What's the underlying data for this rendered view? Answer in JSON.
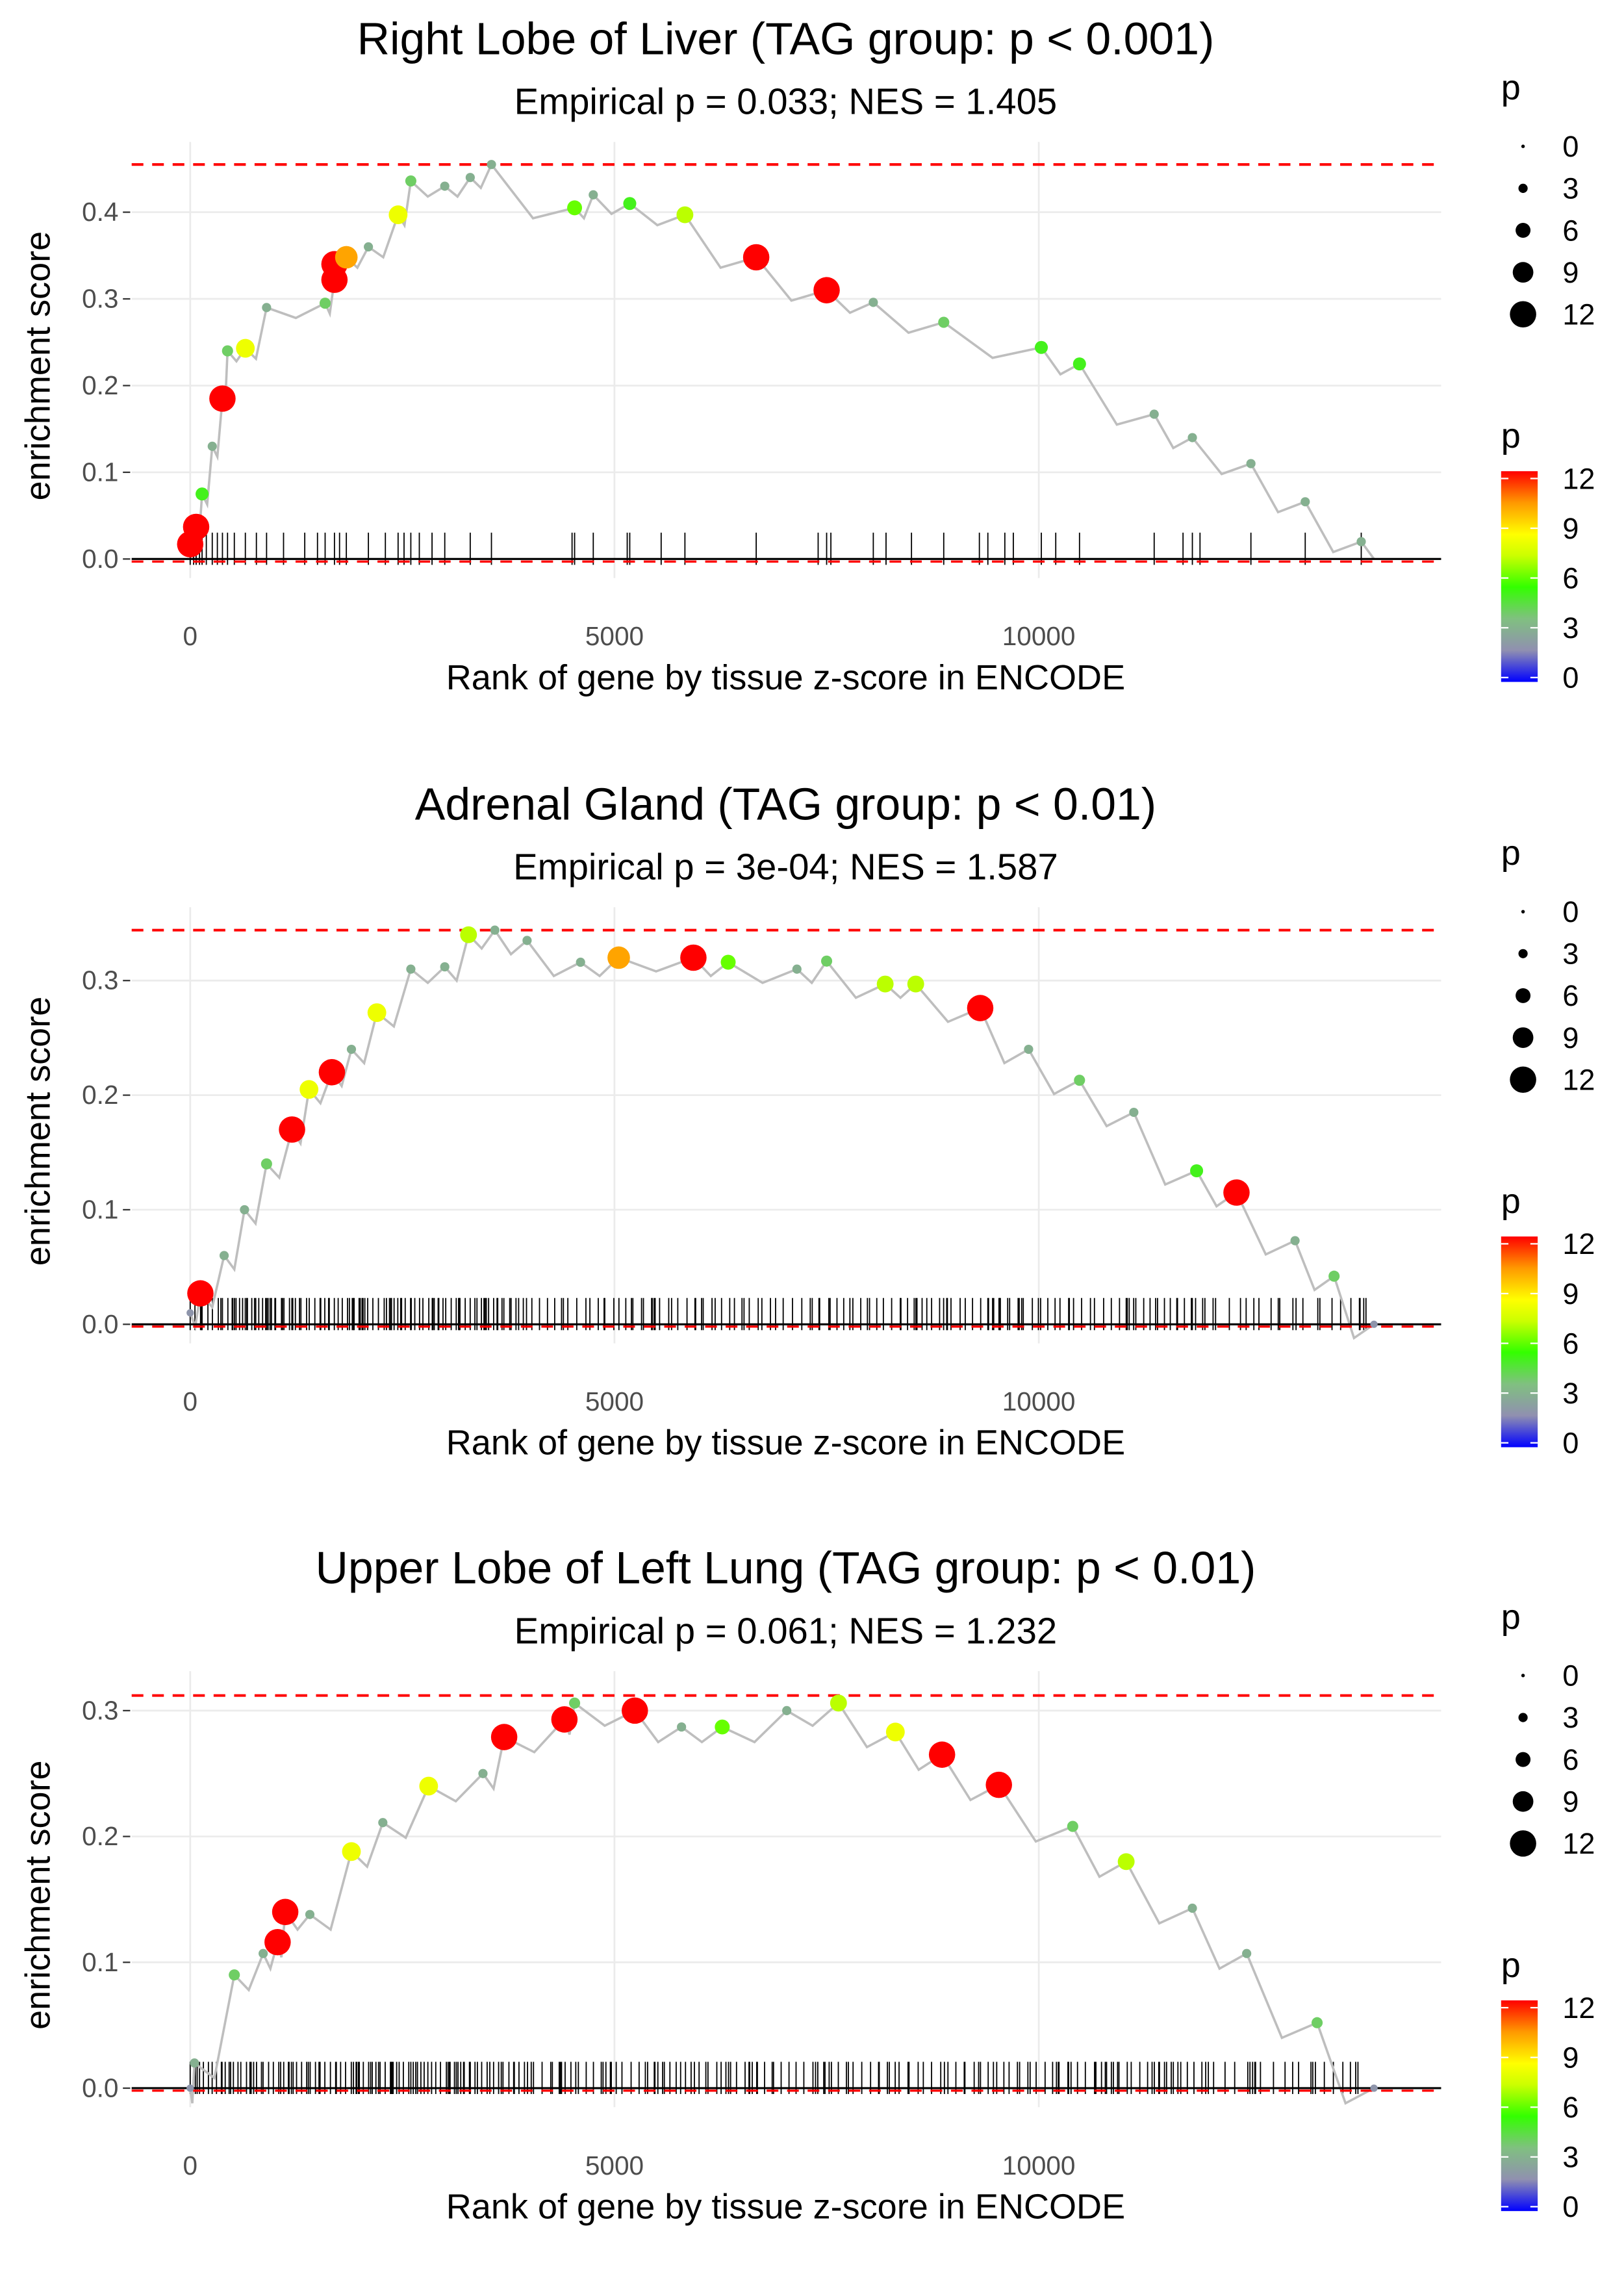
{
  "chart_data": [
    {
      "type": "line",
      "title": "Right Lobe of Liver (TAG group: p < 0.001)",
      "subtitle": "Empirical p = 0.033; NES = 1.405",
      "xlabel": "Rank of gene by tissue z-score in ENCODE",
      "ylabel": "enrichment score",
      "xlim": [
        -700,
        14800
      ],
      "ylim": [
        -0.02,
        0.48
      ],
      "xticks": [
        0,
        5000,
        10000
      ],
      "xtick_labels": [
        "0",
        "5000",
        "10000"
      ],
      "yticks": [
        0,
        0.1,
        0.2,
        0.3,
        0.4
      ],
      "ytick_labels": [
        "0.0",
        "0.1",
        "0.2",
        "0.3",
        "0.4"
      ],
      "max_es": 0.455,
      "min_es": -0.003,
      "end_rank": 13950,
      "points": [
        [
          0,
          0.017,
          12
        ],
        [
          70,
          0.037,
          12
        ],
        [
          140,
          0.075,
          5
        ],
        [
          260,
          0.13,
          3
        ],
        [
          380,
          0.185,
          12
        ],
        [
          440,
          0.24,
          4
        ],
        [
          650,
          0.243,
          8
        ],
        [
          900,
          0.29,
          3
        ],
        [
          1590,
          0.295,
          4
        ],
        [
          1700,
          0.322,
          12
        ],
        [
          1700,
          0.34,
          12
        ],
        [
          1840,
          0.348,
          10
        ],
        [
          2100,
          0.36,
          3
        ],
        [
          2450,
          0.397,
          8
        ],
        [
          2600,
          0.436,
          4
        ],
        [
          3000,
          0.43,
          3
        ],
        [
          3300,
          0.44,
          3
        ],
        [
          3550,
          0.455,
          3
        ],
        [
          4530,
          0.405,
          6
        ],
        [
          4750,
          0.42,
          3
        ],
        [
          5180,
          0.41,
          5
        ],
        [
          5830,
          0.397,
          7
        ],
        [
          6670,
          0.348,
          12
        ],
        [
          7500,
          0.31,
          12
        ],
        [
          8050,
          0.296,
          3
        ],
        [
          8880,
          0.273,
          4
        ],
        [
          10030,
          0.244,
          5
        ],
        [
          10480,
          0.225,
          5
        ],
        [
          11360,
          0.167,
          3
        ],
        [
          11810,
          0.14,
          3
        ],
        [
          12500,
          0.11,
          3
        ],
        [
          13140,
          0.066,
          3
        ],
        [
          13800,
          0.02,
          3
        ]
      ],
      "rug": [
        0,
        40,
        70,
        110,
        140,
        190,
        260,
        320,
        380,
        440,
        520,
        650,
        780,
        900,
        1100,
        1350,
        1500,
        1590,
        1700,
        1760,
        1840,
        2100,
        2300,
        2450,
        2520,
        2600,
        2700,
        2850,
        3000,
        3300,
        3550,
        4500,
        4530,
        4750,
        5150,
        5180,
        5550,
        5830,
        6670,
        7400,
        7500,
        7550,
        8050,
        8200,
        8500,
        8880,
        9300,
        9400,
        9600,
        9700,
        10030,
        10200,
        10480,
        11360,
        11700,
        11810,
        11900,
        12500,
        13140,
        13800
      ],
      "legend": {
        "size_title": "p",
        "size_labels": [
          "0",
          "3",
          "6",
          "9",
          "12"
        ],
        "color_title": "p",
        "color_labels": [
          "12",
          "9",
          "6",
          "3",
          "0"
        ]
      }
    },
    {
      "type": "line",
      "title": "Adrenal Gland (TAG group: p < 0.01)",
      "subtitle": "Empirical p = 3e-04; NES = 1.587",
      "xlabel": "Rank of gene by tissue z-score in ENCODE",
      "ylabel": "enrichment score",
      "xlim": [
        -700,
        14800
      ],
      "ylim": [
        -0.01,
        0.35
      ],
      "xticks": [
        0,
        5000,
        10000
      ],
      "xtick_labels": [
        "0",
        "5000",
        "10000"
      ],
      "yticks": [
        0,
        0.1,
        0.2,
        0.3
      ],
      "ytick_labels": [
        "0.0",
        "0.1",
        "0.2",
        "0.3"
      ],
      "max_es": 0.344,
      "min_es": -0.002,
      "end_rank": 13950,
      "points": [
        [
          0,
          0.01,
          2
        ],
        [
          120,
          0.027,
          12
        ],
        [
          400,
          0.06,
          3
        ],
        [
          640,
          0.1,
          3
        ],
        [
          900,
          0.14,
          4
        ],
        [
          1200,
          0.17,
          12
        ],
        [
          1400,
          0.205,
          8
        ],
        [
          1670,
          0.22,
          12
        ],
        [
          1900,
          0.24,
          3
        ],
        [
          2200,
          0.272,
          8
        ],
        [
          2600,
          0.31,
          3
        ],
        [
          3000,
          0.312,
          3
        ],
        [
          3280,
          0.34,
          7
        ],
        [
          3590,
          0.344,
          3
        ],
        [
          3970,
          0.335,
          3
        ],
        [
          4600,
          0.316,
          3
        ],
        [
          5050,
          0.32,
          10
        ],
        [
          5930,
          0.32,
          12
        ],
        [
          6340,
          0.316,
          6
        ],
        [
          7150,
          0.31,
          3
        ],
        [
          7500,
          0.317,
          4
        ],
        [
          8190,
          0.297,
          7
        ],
        [
          8550,
          0.297,
          7
        ],
        [
          9310,
          0.276,
          12
        ],
        [
          9880,
          0.24,
          3
        ],
        [
          10480,
          0.213,
          4
        ],
        [
          11120,
          0.185,
          3
        ],
        [
          11860,
          0.134,
          5
        ],
        [
          12330,
          0.115,
          12
        ],
        [
          13020,
          0.073,
          3
        ],
        [
          13480,
          0.042,
          4
        ],
        [
          13950,
          0.0,
          2
        ]
      ],
      "rug_density": "dense",
      "legend": {
        "size_title": "p",
        "size_labels": [
          "0",
          "3",
          "6",
          "9",
          "12"
        ],
        "color_title": "p",
        "color_labels": [
          "12",
          "9",
          "6",
          "3",
          "0"
        ]
      }
    },
    {
      "type": "line",
      "title": "Upper Lobe of Left Lung (TAG group: p < 0.01)",
      "subtitle": "Empirical p = 0.061; NES = 1.232",
      "xlabel": "Rank of gene by tissue z-score in ENCODE",
      "ylabel": "enrichment score",
      "xlim": [
        -700,
        14800
      ],
      "ylim": [
        -0.01,
        0.32
      ],
      "xticks": [
        0,
        5000,
        10000
      ],
      "xtick_labels": [
        "0",
        "5000",
        "10000"
      ],
      "yticks": [
        0,
        0.1,
        0.2,
        0.3
      ],
      "ytick_labels": [
        "0.0",
        "0.1",
        "0.2",
        "0.3"
      ],
      "max_es": 0.312,
      "min_es": -0.002,
      "end_rank": 13950,
      "points": [
        [
          0,
          0.0,
          2
        ],
        [
          50,
          0.02,
          3
        ],
        [
          520,
          0.09,
          4
        ],
        [
          860,
          0.107,
          3
        ],
        [
          1030,
          0.116,
          12
        ],
        [
          1120,
          0.14,
          12
        ],
        [
          1410,
          0.138,
          3
        ],
        [
          1900,
          0.188,
          8
        ],
        [
          2270,
          0.211,
          3
        ],
        [
          2810,
          0.24,
          8
        ],
        [
          3450,
          0.25,
          3
        ],
        [
          3700,
          0.279,
          12
        ],
        [
          4410,
          0.293,
          12
        ],
        [
          4530,
          0.306,
          4
        ],
        [
          5240,
          0.3,
          12
        ],
        [
          5790,
          0.287,
          3
        ],
        [
          6270,
          0.287,
          6
        ],
        [
          7030,
          0.3,
          3
        ],
        [
          7640,
          0.306,
          7
        ],
        [
          8310,
          0.283,
          8
        ],
        [
          8860,
          0.265,
          12
        ],
        [
          9530,
          0.241,
          12
        ],
        [
          10400,
          0.208,
          4
        ],
        [
          11030,
          0.18,
          7
        ],
        [
          11810,
          0.143,
          3
        ],
        [
          12450,
          0.107,
          3
        ],
        [
          13280,
          0.052,
          4
        ],
        [
          13950,
          0.0,
          2
        ]
      ],
      "rug_density": "dense",
      "legend": {
        "size_title": "p",
        "size_labels": [
          "0",
          "3",
          "6",
          "9",
          "12"
        ],
        "color_title": "p",
        "color_labels": [
          "12",
          "9",
          "6",
          "3",
          "0"
        ]
      }
    }
  ]
}
